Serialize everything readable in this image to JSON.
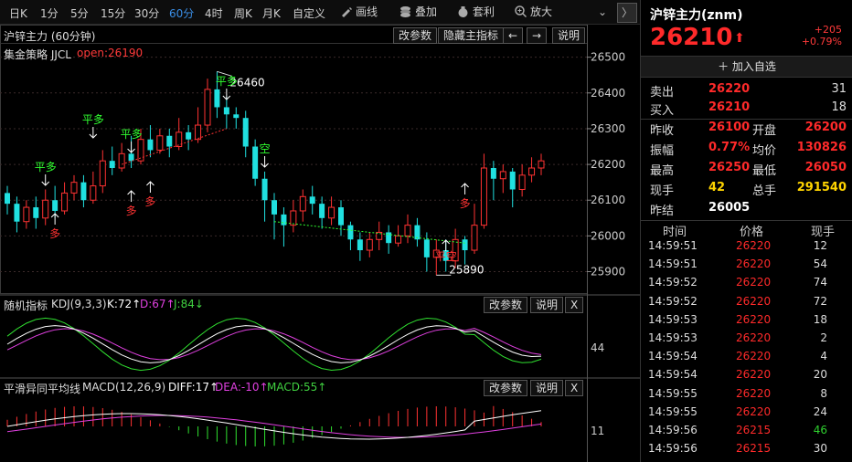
{
  "toolbar": {
    "periods": [
      "日K",
      "1分",
      "5分",
      "15分",
      "30分",
      "60分",
      "4时",
      "周K",
      "月K",
      "自定义"
    ],
    "active_period": "60分",
    "tools": [
      {
        "label": "画线",
        "icon": "pencil-icon"
      },
      {
        "label": "叠加",
        "icon": "layers-icon"
      },
      {
        "label": "套利",
        "icon": "money-bag-icon"
      },
      {
        "label": "放大",
        "icon": "zoom-in-icon"
      }
    ],
    "nav_collapse": "⌄",
    "nav_next": "〉"
  },
  "main_panel": {
    "title": "沪锌主力 (60分钟)",
    "buttons": [
      "改参数",
      "隐藏主指标",
      "←",
      "→",
      "说明"
    ],
    "strategy_label": "集金策略  JJCL",
    "open_label": "open:26190",
    "y_ticks": [
      "26500",
      "26400",
      "26300",
      "26200",
      "26100",
      "26000",
      "25900"
    ],
    "high_label": "26460",
    "low_label": "25890",
    "signals": {
      "ping_duo": "平多",
      "duo": "多",
      "kong": "空",
      "ping_kong": "平空"
    }
  },
  "kdj_panel": {
    "name": "随机指标",
    "params": "KDJ(9,3,3)",
    "k": "K:72↑",
    "d": "D:67↑",
    "j": "J:84↓",
    "buttons": [
      "改参数",
      "说明",
      "X"
    ],
    "y_tick": "44"
  },
  "macd_panel": {
    "name": "平滑异同平均线",
    "params": "MACD(12,26,9)",
    "diff": "DIFF:17↑",
    "dea": "DEA:-10↑",
    "macd": "MACD:55↑",
    "buttons": [
      "改参数",
      "说明",
      "X"
    ],
    "y_tick": "11"
  },
  "chart_data": {
    "type": "candlestick",
    "y_axis_ticks": [
      26500,
      26400,
      26300,
      26200,
      26100,
      26000,
      25900
    ],
    "ylim": [
      25840,
      26540
    ],
    "annotations": [
      {
        "text": "26460",
        "value": 26460
      },
      {
        "text": "25890",
        "value": 25890
      }
    ],
    "candles": [
      [
        26120,
        26090,
        26140,
        26060
      ],
      [
        26090,
        26040,
        26110,
        26010
      ],
      [
        26040,
        26080,
        26100,
        26020
      ],
      [
        26080,
        26050,
        26110,
        26020
      ],
      [
        26050,
        26100,
        26130,
        26030
      ],
      [
        26100,
        26070,
        26140,
        26050
      ],
      [
        26070,
        26120,
        26150,
        26060
      ],
      [
        26120,
        26150,
        26170,
        26100
      ],
      [
        26150,
        26100,
        26170,
        26080
      ],
      [
        26100,
        26140,
        26180,
        26090
      ],
      [
        26140,
        26210,
        26240,
        26120
      ],
      [
        26210,
        26190,
        26250,
        26170
      ],
      [
        26190,
        26230,
        26260,
        26180
      ],
      [
        26230,
        26210,
        26280,
        26190
      ],
      [
        26210,
        26270,
        26300,
        26200
      ],
      [
        26270,
        26240,
        26310,
        26220
      ],
      [
        26240,
        26280,
        26300,
        26230
      ],
      [
        26280,
        26250,
        26300,
        26220
      ],
      [
        26250,
        26290,
        26330,
        26240
      ],
      [
        26290,
        26270,
        26310,
        26240
      ],
      [
        26270,
        26310,
        26360,
        26260
      ],
      [
        26310,
        26410,
        26440,
        26290
      ],
      [
        26410,
        26360,
        26460,
        26330
      ],
      [
        26360,
        26340,
        26390,
        26300
      ],
      [
        26340,
        26330,
        26360,
        26300
      ],
      [
        26330,
        26250,
        26350,
        26220
      ],
      [
        26250,
        26160,
        26270,
        26140
      ],
      [
        26160,
        26100,
        26180,
        26040
      ],
      [
        26100,
        26060,
        26120,
        25990
      ],
      [
        26060,
        26030,
        26080,
        25970
      ],
      [
        26030,
        26070,
        26100,
        26010
      ],
      [
        26070,
        26110,
        26130,
        26040
      ],
      [
        26110,
        26090,
        26140,
        26060
      ],
      [
        26090,
        26050,
        26110,
        26020
      ],
      [
        26050,
        26080,
        26110,
        26030
      ],
      [
        26080,
        26030,
        26100,
        26000
      ],
      [
        26030,
        25990,
        26040,
        25960
      ],
      [
        25990,
        25960,
        26010,
        25930
      ],
      [
        25960,
        25990,
        26010,
        25940
      ],
      [
        25990,
        26010,
        26040,
        25960
      ],
      [
        26010,
        25980,
        26030,
        25950
      ],
      [
        25980,
        26000,
        26030,
        25970
      ],
      [
        26000,
        26030,
        26060,
        25980
      ],
      [
        26030,
        25990,
        26050,
        25970
      ],
      [
        25990,
        25940,
        26010,
        25900
      ],
      [
        25940,
        25960,
        25990,
        25890
      ],
      [
        25960,
        25930,
        25990,
        25900
      ],
      [
        25930,
        25990,
        26020,
        25910
      ],
      [
        25990,
        25960,
        26000,
        25920
      ],
      [
        25960,
        26030,
        26090,
        25950
      ],
      [
        26030,
        26190,
        26230,
        26020
      ],
      [
        26190,
        26160,
        26210,
        26100
      ],
      [
        26160,
        26180,
        26200,
        26120
      ],
      [
        26180,
        26130,
        26190,
        26080
      ],
      [
        26130,
        26170,
        26200,
        26110
      ],
      [
        26170,
        26190,
        26220,
        26150
      ],
      [
        26190,
        26210,
        26230,
        26170
      ]
    ],
    "kdj": {
      "k": 72,
      "d": 67,
      "j": 84
    },
    "macd": {
      "diff": 17,
      "dea": -10,
      "macd": 55
    }
  },
  "quote": {
    "name": "沪锌主力(znm)",
    "price": "26210",
    "arrow": "⬆",
    "change": "+205",
    "change_pct": "+0.79%",
    "add_favorite": "＋ 加入自选",
    "sell_label": "卖出",
    "sell_price": "26220",
    "sell_vol": "31",
    "buy_label": "买入",
    "buy_price": "26210",
    "buy_vol": "18",
    "rows": [
      {
        "l1": "昨收",
        "v1": "26100",
        "l2": "开盘",
        "v2": "26200",
        "c1": "#ff2a2a",
        "c2": "#ff2a2a"
      },
      {
        "l1": "振幅",
        "v1": "0.77%",
        "l2": "均价",
        "v2": "130826",
        "c1": "#ff2a2a",
        "c2": "#ff2a2a"
      },
      {
        "l1": "最高",
        "v1": "26250",
        "l2": "最低",
        "v2": "26050",
        "c1": "#ff2a2a",
        "c2": "#ff2a2a"
      },
      {
        "l1": "现手",
        "v1": "42",
        "l2": "总手",
        "v2": "291540",
        "c1": "#ffd400",
        "c2": "#ffd400"
      },
      {
        "l1": "昨结",
        "v1": "26005",
        "l2": "",
        "v2": "",
        "c1": "#ffffff",
        "c2": "#ffffff"
      }
    ]
  },
  "ticks": {
    "headers": [
      "时间",
      "价格",
      "现手"
    ],
    "rows": [
      {
        "time": "14:59:51",
        "price": "26220",
        "vol": "12",
        "vol_color": "#dddddd"
      },
      {
        "time": "14:59:51",
        "price": "26220",
        "vol": "54",
        "vol_color": "#dddddd"
      },
      {
        "time": "14:59:52",
        "price": "26220",
        "vol": "74",
        "vol_color": "#dddddd"
      },
      {
        "time": "14:59:52",
        "price": "26220",
        "vol": "72",
        "vol_color": "#dddddd"
      },
      {
        "time": "14:59:53",
        "price": "26220",
        "vol": "18",
        "vol_color": "#dddddd"
      },
      {
        "time": "14:59:53",
        "price": "26220",
        "vol": "2",
        "vol_color": "#dddddd"
      },
      {
        "time": "14:59:54",
        "price": "26220",
        "vol": "4",
        "vol_color": "#dddddd"
      },
      {
        "time": "14:59:54",
        "price": "26220",
        "vol": "20",
        "vol_color": "#dddddd"
      },
      {
        "time": "14:59:55",
        "price": "26220",
        "vol": "8",
        "vol_color": "#dddddd"
      },
      {
        "time": "14:59:55",
        "price": "26220",
        "vol": "24",
        "vol_color": "#dddddd"
      },
      {
        "time": "14:59:56",
        "price": "26215",
        "vol": "46",
        "vol_color": "#2fd12f"
      },
      {
        "time": "14:59:56",
        "price": "26215",
        "vol": "30",
        "vol_color": "#dddddd"
      }
    ]
  }
}
